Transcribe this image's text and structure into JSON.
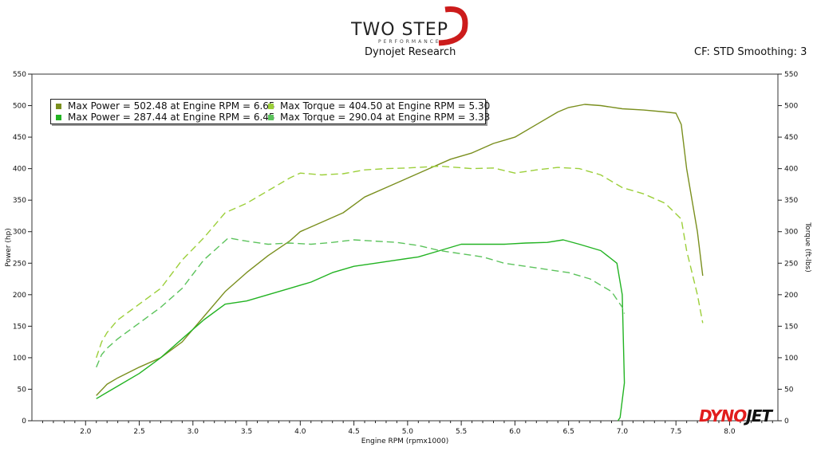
{
  "header": {
    "title": "Dynojet Research",
    "info": "CF: STD Smoothing: 3",
    "logo_main": "TWO STEP",
    "logo_sub": "PERFORMANCE"
  },
  "brand": {
    "red": "DYNO",
    "black": "JET"
  },
  "legend": {
    "items": [
      {
        "label": "Max Power = 502.48 at Engine RPM = 6.65",
        "color": "#7a8f1e"
      },
      {
        "label": "Max Torque = 404.50 at Engine RPM = 5.30",
        "color": "#9ccf3a"
      },
      {
        "label": "Max Power = 287.44 at Engine RPM = 6.45",
        "color": "#22b322"
      },
      {
        "label": "Max Torque = 290.04 at Engine RPM = 3.33",
        "color": "#5cc35c"
      }
    ]
  },
  "chart_data": {
    "type": "line",
    "xlabel": "Engine RPM (rpmx1000)",
    "ylabel": "Power (hp)",
    "y2label": "Torque (ft-lbs)",
    "xlim": [
      1.5,
      8.45
    ],
    "ylim": [
      0,
      550
    ],
    "y2lim": [
      0,
      550
    ],
    "xticks": [
      2.0,
      2.5,
      3.0,
      3.5,
      4.0,
      4.5,
      5.0,
      5.5,
      6.0,
      6.5,
      7.0,
      7.5,
      8.0
    ],
    "yticks": [
      0,
      50,
      100,
      150,
      200,
      250,
      300,
      350,
      400,
      450,
      500,
      550
    ],
    "series": [
      {
        "name": "Max Power = 502.48 at Engine RPM = 6.65",
        "axis": "left",
        "dash": false,
        "color": "#7a8f1e",
        "x": [
          2.1,
          2.2,
          2.3,
          2.5,
          2.7,
          2.9,
          3.1,
          3.3,
          3.5,
          3.7,
          3.9,
          4.0,
          4.2,
          4.4,
          4.6,
          4.8,
          5.0,
          5.2,
          5.4,
          5.6,
          5.8,
          6.0,
          6.2,
          6.4,
          6.5,
          6.65,
          6.8,
          7.0,
          7.2,
          7.4,
          7.5,
          7.55,
          7.6,
          7.7,
          7.75
        ],
        "y": [
          40,
          58,
          68,
          85,
          100,
          125,
          165,
          205,
          235,
          262,
          285,
          300,
          315,
          330,
          355,
          370,
          385,
          400,
          415,
          425,
          440,
          450,
          470,
          490,
          497,
          502,
          500,
          495,
          493,
          490,
          488,
          470,
          400,
          300,
          230
        ]
      },
      {
        "name": "Max Torque = 404.50 at Engine RPM = 5.30",
        "axis": "right",
        "dash": true,
        "color": "#9ccf3a",
        "x": [
          2.1,
          2.15,
          2.2,
          2.3,
          2.5,
          2.7,
          2.9,
          3.1,
          3.3,
          3.5,
          3.7,
          3.9,
          4.0,
          4.2,
          4.4,
          4.6,
          4.8,
          5.0,
          5.3,
          5.6,
          5.8,
          6.0,
          6.2,
          6.4,
          6.6,
          6.8,
          7.0,
          7.2,
          7.4,
          7.55,
          7.6,
          7.7,
          7.75
        ],
        "y": [
          100,
          125,
          140,
          160,
          185,
          210,
          255,
          290,
          330,
          345,
          365,
          385,
          393,
          390,
          392,
          398,
          400,
          401,
          404,
          400,
          401,
          393,
          398,
          402,
          400,
          390,
          370,
          360,
          345,
          320,
          270,
          200,
          155
        ]
      },
      {
        "name": "Max Power = 287.44 at Engine RPM = 6.45",
        "axis": "left",
        "dash": false,
        "color": "#22b322",
        "x": [
          2.1,
          2.3,
          2.5,
          2.7,
          2.9,
          3.1,
          3.3,
          3.5,
          3.7,
          3.9,
          4.1,
          4.3,
          4.5,
          4.7,
          4.9,
          5.1,
          5.3,
          5.5,
          5.7,
          5.9,
          6.1,
          6.3,
          6.45,
          6.6,
          6.8,
          6.95,
          7.0,
          7.02,
          6.98,
          6.96
        ],
        "y": [
          35,
          55,
          75,
          100,
          130,
          160,
          185,
          190,
          200,
          210,
          220,
          235,
          245,
          250,
          255,
          260,
          270,
          280,
          280,
          280,
          282,
          283,
          287,
          280,
          270,
          250,
          200,
          60,
          5,
          0
        ]
      },
      {
        "name": "Max Torque = 290.04 at Engine RPM = 3.33",
        "axis": "right",
        "dash": true,
        "color": "#5cc35c",
        "x": [
          2.1,
          2.15,
          2.2,
          2.3,
          2.5,
          2.7,
          2.9,
          3.1,
          3.33,
          3.5,
          3.7,
          3.9,
          4.1,
          4.3,
          4.5,
          4.7,
          4.9,
          5.1,
          5.3,
          5.5,
          5.7,
          5.9,
          6.1,
          6.3,
          6.5,
          6.7,
          6.9,
          7.0,
          7.02
        ],
        "y": [
          85,
          105,
          115,
          130,
          155,
          180,
          210,
          255,
          290,
          285,
          280,
          282,
          280,
          283,
          287,
          285,
          283,
          278,
          270,
          265,
          260,
          250,
          245,
          240,
          235,
          225,
          205,
          180,
          170
        ]
      }
    ]
  }
}
